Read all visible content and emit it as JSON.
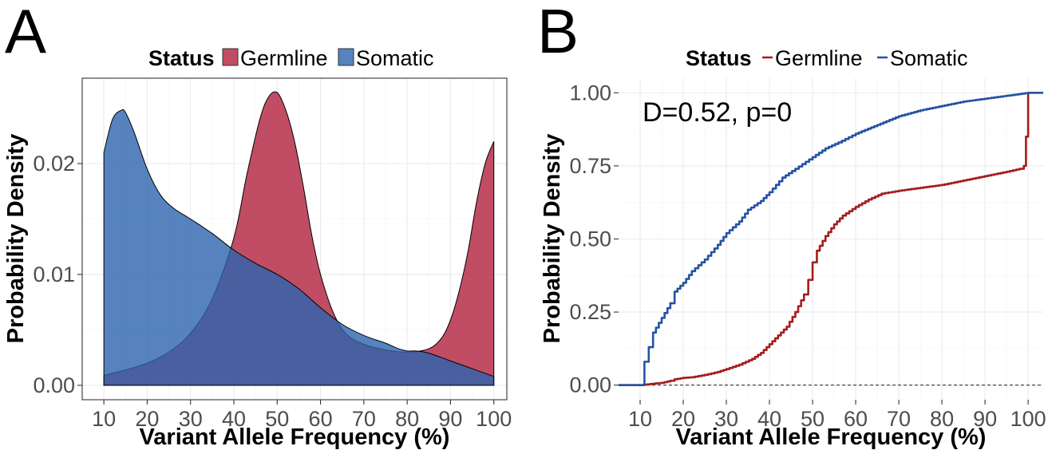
{
  "chart_data": [
    {
      "panel_label": "A",
      "type": "area",
      "subtype": "density",
      "xlabel": "Variant Allele Frequency (%)",
      "ylabel": "Probability Density",
      "xlim": [
        5,
        103
      ],
      "ylim": [
        -0.0013,
        0.0277
      ],
      "xticks": [
        10,
        20,
        30,
        40,
        50,
        60,
        70,
        80,
        90,
        100
      ],
      "xtick_labels": [
        "10",
        "20",
        "30",
        "40",
        "50",
        "60",
        "70",
        "80",
        "90",
        "100"
      ],
      "yticks": [
        0,
        0.01,
        0.02
      ],
      "ytick_labels": [
        "0.00",
        "0.01",
        "0.02"
      ],
      "grid": true,
      "legend": {
        "position": "top",
        "title": "Status",
        "items": [
          {
            "label": "Germline",
            "color": "#b2213d"
          },
          {
            "label": "Somatic",
            "color": "#2c64ae"
          }
        ]
      },
      "series": [
        {
          "name": "Germline",
          "color": "#b2213d",
          "opacity": 0.8,
          "x": [
            10,
            15,
            20,
            25,
            30,
            35,
            40,
            43,
            46,
            48,
            50,
            52,
            54,
            56,
            58,
            60,
            63,
            66,
            70,
            75,
            80,
            85,
            88,
            90,
            92,
            94,
            96,
            98,
            100
          ],
          "y": [
            0.0009,
            0.0014,
            0.002,
            0.003,
            0.0047,
            0.0078,
            0.0133,
            0.019,
            0.024,
            0.026,
            0.0264,
            0.0248,
            0.022,
            0.018,
            0.0135,
            0.01,
            0.0065,
            0.0046,
            0.0037,
            0.0032,
            0.003,
            0.0033,
            0.0043,
            0.0059,
            0.0085,
            0.012,
            0.0165,
            0.02,
            0.022
          ]
        },
        {
          "name": "Somatic",
          "color": "#2c64ae",
          "opacity": 0.8,
          "x": [
            10,
            12,
            14,
            15,
            17,
            20,
            23,
            26,
            30,
            35,
            40,
            45,
            50,
            55,
            60,
            65,
            70,
            75,
            78,
            80,
            82,
            85,
            90,
            95,
            100
          ],
          "y": [
            0.021,
            0.024,
            0.0248,
            0.0246,
            0.0228,
            0.0195,
            0.0172,
            0.016,
            0.015,
            0.0137,
            0.0122,
            0.011,
            0.01,
            0.0087,
            0.007,
            0.0055,
            0.0045,
            0.0038,
            0.0033,
            0.0031,
            0.0031,
            0.0029,
            0.0022,
            0.0015,
            0.0008
          ]
        }
      ]
    },
    {
      "panel_label": "B",
      "type": "line",
      "subtype": "ecdf",
      "xlabel": "Variant Allele Frequency (%)",
      "ylabel": "Probability Density",
      "annotation": "D=0.52, p=0",
      "xlim": [
        5,
        103.5
      ],
      "ylim": [
        -0.05,
        1.05
      ],
      "xticks": [
        10,
        20,
        30,
        40,
        50,
        60,
        70,
        80,
        90,
        100
      ],
      "xtick_labels": [
        "10",
        "20",
        "30",
        "40",
        "50",
        "60",
        "70",
        "80",
        "90",
        "100"
      ],
      "yticks": [
        0,
        0.25,
        0.5,
        0.75,
        1.0
      ],
      "ytick_labels": [
        "0.00",
        "0.25",
        "0.50",
        "0.75",
        "1.00"
      ],
      "grid": true,
      "hline": {
        "y": 0,
        "style": "dashed",
        "color": "#333333"
      },
      "legend": {
        "position": "top",
        "title": "Status",
        "items": [
          {
            "label": "Germline",
            "color": "#a51c1c"
          },
          {
            "label": "Somatic",
            "color": "#2452a4"
          }
        ]
      },
      "series": [
        {
          "name": "Germline",
          "color": "#a51c1c",
          "x": [
            5,
            10,
            13,
            15,
            17,
            18,
            20,
            22,
            25,
            28,
            30,
            33,
            36,
            38,
            40,
            42,
            44,
            46,
            48,
            49,
            50,
            51,
            53,
            55,
            57,
            60,
            63,
            66,
            70,
            75,
            80,
            85,
            90,
            95,
            98,
            99,
            99.5,
            100
          ],
          "y": [
            0,
            0,
            0.005,
            0.008,
            0.015,
            0.02,
            0.025,
            0.027,
            0.035,
            0.045,
            0.055,
            0.07,
            0.09,
            0.11,
            0.14,
            0.17,
            0.2,
            0.25,
            0.31,
            0.36,
            0.42,
            0.46,
            0.51,
            0.55,
            0.58,
            0.61,
            0.635,
            0.655,
            0.665,
            0.675,
            0.685,
            0.7,
            0.715,
            0.73,
            0.74,
            0.75,
            0.85,
            1.0
          ]
        },
        {
          "name": "Somatic",
          "color": "#2452a4",
          "x": [
            5,
            10,
            11,
            12,
            13,
            15,
            17,
            18,
            20,
            22,
            25,
            28,
            30,
            33,
            35,
            38,
            40,
            43,
            46,
            50,
            53,
            56,
            60,
            65,
            70,
            75,
            80,
            85,
            90,
            95,
            100,
            103.5
          ],
          "y": [
            0,
            0,
            0.08,
            0.13,
            0.18,
            0.23,
            0.28,
            0.32,
            0.35,
            0.39,
            0.43,
            0.48,
            0.52,
            0.56,
            0.6,
            0.63,
            0.66,
            0.71,
            0.74,
            0.78,
            0.81,
            0.83,
            0.86,
            0.89,
            0.92,
            0.94,
            0.955,
            0.97,
            0.98,
            0.99,
            1.0,
            1.0
          ]
        }
      ]
    }
  ]
}
